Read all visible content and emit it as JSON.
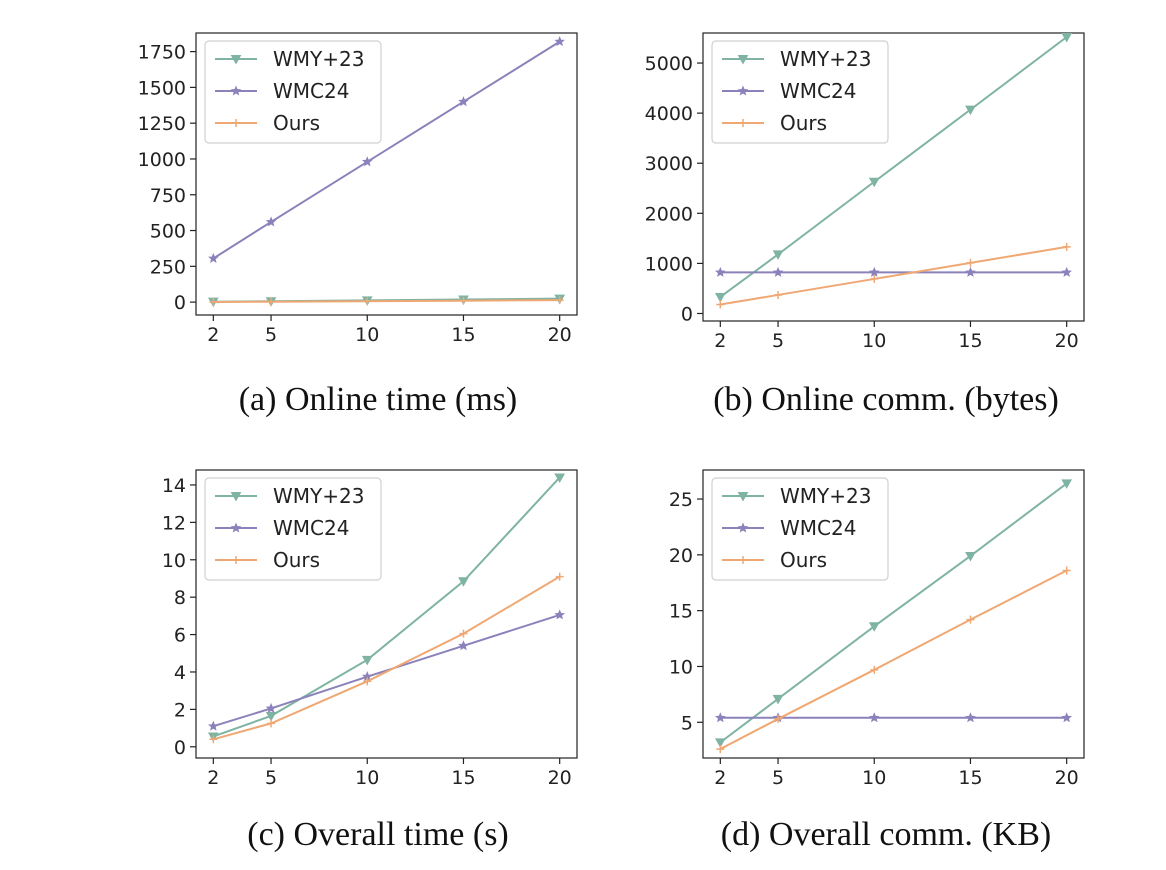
{
  "legend_entries": [
    "WMY+23",
    "WMC24",
    "Ours"
  ],
  "colors": {
    "WMY+23": "#7fb3a3",
    "WMC24": "#8b82bb",
    "Ours": "#efa873"
  },
  "chart_data": [
    {
      "type": "line",
      "caption": "(a) Online time (ms)",
      "x": [
        2,
        5,
        10,
        15,
        20
      ],
      "xticks": [
        "2",
        "5",
        "10",
        "15",
        "20"
      ],
      "yticks": [
        "0",
        "250",
        "500",
        "750",
        "1000",
        "1250",
        "1500",
        "1750"
      ],
      "ylim": [
        -90,
        1880
      ],
      "legend": "top-left",
      "series": [
        {
          "name": "WMY+23",
          "values": [
            3,
            6,
            12,
            18,
            24
          ]
        },
        {
          "name": "WMC24",
          "values": [
            305,
            560,
            980,
            1400,
            1820
          ]
        },
        {
          "name": "Ours",
          "values": [
            1,
            3,
            6,
            10,
            14
          ]
        }
      ]
    },
    {
      "type": "line",
      "caption": "(b) Online comm. (bytes)",
      "x": [
        2,
        5,
        10,
        15,
        20
      ],
      "xticks": [
        "2",
        "5",
        "10",
        "15",
        "20"
      ],
      "yticks": [
        "0",
        "1000",
        "2000",
        "3000",
        "4000",
        "5000"
      ],
      "ylim": [
        -150,
        5600
      ],
      "legend": "top-left",
      "series": [
        {
          "name": "WMY+23",
          "values": [
            330,
            1180,
            2630,
            4070,
            5520
          ]
        },
        {
          "name": "WMC24",
          "values": [
            820,
            820,
            820,
            820,
            820
          ]
        },
        {
          "name": "Ours",
          "values": [
            180,
            370,
            690,
            1010,
            1330
          ]
        }
      ]
    },
    {
      "type": "line",
      "caption": "(c) Overall time (s)",
      "x": [
        2,
        5,
        10,
        15,
        20
      ],
      "xticks": [
        "2",
        "5",
        "10",
        "15",
        "20"
      ],
      "yticks": [
        "0",
        "2",
        "4",
        "6",
        "8",
        "10",
        "12",
        "14"
      ],
      "ylim": [
        -0.6,
        14.8
      ],
      "legend": "top-left",
      "series": [
        {
          "name": "WMY+23",
          "values": [
            0.55,
            1.65,
            4.65,
            8.85,
            14.4
          ]
        },
        {
          "name": "WMC24",
          "values": [
            1.1,
            2.05,
            3.75,
            5.4,
            7.05
          ]
        },
        {
          "name": "Ours",
          "values": [
            0.4,
            1.25,
            3.5,
            6.05,
            9.1
          ]
        }
      ]
    },
    {
      "type": "line",
      "caption": "(d) Overall comm. (KB)",
      "x": [
        2,
        5,
        10,
        15,
        20
      ],
      "xticks": [
        "2",
        "5",
        "10",
        "15",
        "20"
      ],
      "yticks": [
        "5",
        "10",
        "15",
        "20",
        "25"
      ],
      "ylim": [
        1.8,
        27.6
      ],
      "legend": "top-left",
      "series": [
        {
          "name": "WMY+23",
          "values": [
            3.2,
            7.1,
            13.6,
            19.9,
            26.4
          ]
        },
        {
          "name": "WMC24",
          "values": [
            5.4,
            5.4,
            5.4,
            5.4,
            5.4
          ]
        },
        {
          "name": "Ours",
          "values": [
            2.6,
            5.3,
            9.7,
            14.2,
            18.6
          ]
        }
      ]
    }
  ]
}
